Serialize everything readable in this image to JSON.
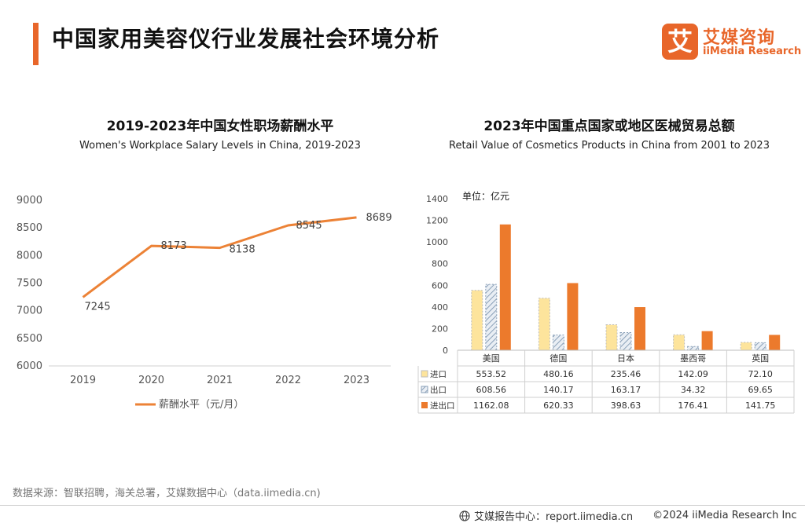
{
  "page": {
    "title": "中国家用美容仪行业发展社会环境分析",
    "source": "数据来源：智联招聘，海关总署，艾媒数据中心（data.iimedia.cn)",
    "footer_center": "艾媒报告中心：report.iimedia.cn",
    "footer_copyright": "©2024  iiMedia Research  Inc"
  },
  "logo": {
    "mark": "艾",
    "name_cn": "艾媒咨询",
    "name_en": "iiMedia Research"
  },
  "colors": {
    "accent": "#e8662a",
    "line": "#ec8236",
    "import": "#fde49c",
    "export": "#a9bbd0",
    "total": "#ec7a2c"
  },
  "chart_data": [
    {
      "type": "line",
      "title": "2019-2023年中国女性职场薪酬水平",
      "subtitle": "Women's Workplace Salary Levels in China, 2019-2023",
      "x": [
        "2019",
        "2020",
        "2021",
        "2022",
        "2023"
      ],
      "series": [
        {
          "name": "薪酬水平（元/月）",
          "values": [
            7245,
            8173,
            8138,
            8545,
            8689
          ]
        }
      ],
      "ylim": [
        6000,
        9000
      ],
      "yticks": [
        6000,
        6500,
        7000,
        7500,
        8000,
        8500,
        9000
      ],
      "grid": false,
      "legend": "bottom"
    },
    {
      "type": "bar",
      "title": "2023年中国重点国家或地区医械贸易总额",
      "subtitle": "Retail Value of Cosmetics Products in China from 2001 to 2023",
      "unit": "单位：亿元",
      "categories": [
        "美国",
        "德国",
        "日本",
        "墨西哥",
        "英国"
      ],
      "series": [
        {
          "name": "进口",
          "values": [
            553.52,
            480.16,
            235.46,
            142.09,
            72.1
          ],
          "display": [
            "553.52",
            "480.16",
            "235.46",
            "142.09",
            "72.10"
          ]
        },
        {
          "name": "出口",
          "values": [
            608.56,
            140.17,
            163.17,
            34.32,
            69.65
          ],
          "display": [
            "608.56",
            "140.17",
            "163.17",
            "34.32",
            "69.65"
          ]
        },
        {
          "name": "进出口",
          "values": [
            1162.08,
            620.33,
            398.63,
            176.41,
            141.75
          ],
          "display": [
            "1162.08",
            "620.33",
            "398.63",
            "176.41",
            "141.75"
          ]
        }
      ],
      "ylim": [
        0,
        1400
      ],
      "yticks": [
        0,
        200,
        400,
        600,
        800,
        1000,
        1200,
        1400
      ],
      "grid": false,
      "legend": "data-table"
    }
  ]
}
